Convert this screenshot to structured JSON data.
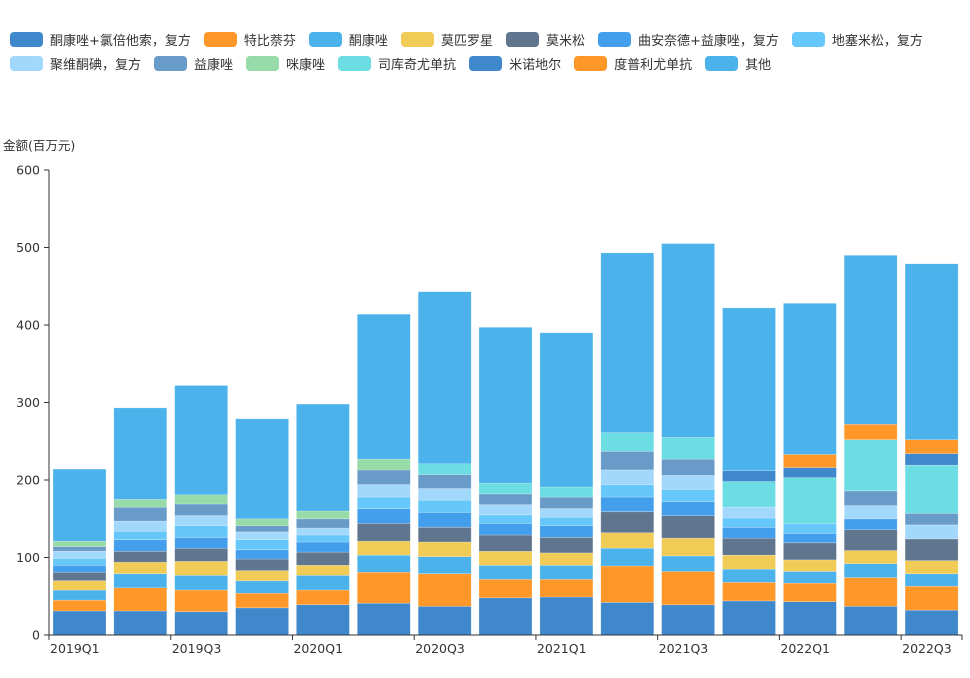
{
  "chart_data": {
    "type": "bar",
    "stacked": true,
    "title": "",
    "xlabel": "",
    "ylabel": "金额(百万元)",
    "ylim": [
      0,
      600
    ],
    "yticks": [
      0,
      100,
      200,
      300,
      400,
      500,
      600
    ],
    "grid": false,
    "legend_position": "top",
    "categories": [
      "2019Q1",
      "2019Q2",
      "2019Q3",
      "2019Q4",
      "2020Q1",
      "2020Q2",
      "2020Q3",
      "2020Q4",
      "2021Q1",
      "2021Q2",
      "2021Q3",
      "2021Q4",
      "2022Q1",
      "2022Q2",
      "2022Q3"
    ],
    "xtick_labels": [
      "2019Q1",
      "",
      "2019Q3",
      "",
      "2020Q1",
      "",
      "2020Q3",
      "",
      "2021Q1",
      "",
      "2021Q3",
      "",
      "2022Q1",
      "",
      "2022Q3"
    ],
    "series": [
      {
        "name": "酮康唑+氯倍他索，复方",
        "color": "#3f88cc",
        "values": [
          31,
          31,
          30,
          35,
          39,
          41,
          37,
          48,
          49,
          42,
          39,
          44,
          43,
          37,
          32
        ]
      },
      {
        "name": "特比萘芬",
        "color": "#ff9729",
        "values": [
          14,
          30,
          28,
          19,
          19,
          40,
          42,
          24,
          23,
          47,
          43,
          24,
          24,
          37,
          31
        ]
      },
      {
        "name": "酮康唑",
        "color": "#4bb2eb",
        "values": [
          13,
          18,
          19,
          16,
          19,
          22,
          22,
          18,
          18,
          23,
          20,
          17,
          15,
          18,
          16
        ]
      },
      {
        "name": "莫匹罗星",
        "color": "#f0cb55",
        "values": [
          12,
          15,
          18,
          13,
          13,
          18,
          19,
          18,
          16,
          20,
          23,
          18,
          15,
          17,
          17
        ]
      },
      {
        "name": "莫米松",
        "color": "#60768f",
        "values": [
          11,
          14,
          17,
          15,
          17,
          23,
          19,
          21,
          20,
          27,
          29,
          22,
          22,
          27,
          28
        ]
      },
      {
        "name": "曲安奈德+益康唑，复方",
        "color": "#439fec",
        "values": [
          9,
          15,
          14,
          12,
          13,
          19,
          19,
          15,
          15,
          19,
          18,
          14,
          12,
          14,
          0
        ]
      },
      {
        "name": "地塞米松，复方",
        "color": "#66c7fa",
        "values": [
          9,
          11,
          15,
          13,
          9,
          15,
          16,
          11,
          11,
          16,
          16,
          12,
          13,
          0,
          0
        ]
      },
      {
        "name": "聚维酮碘，复方",
        "color": "#a2d8fb",
        "values": [
          9,
          13,
          13,
          10,
          9,
          16,
          15,
          13,
          11,
          19,
          18,
          14,
          0,
          17,
          18
        ]
      },
      {
        "name": "益康唑",
        "color": "#699bc9",
        "values": [
          6,
          18,
          15,
          8,
          12,
          19,
          18,
          14,
          15,
          24,
          21,
          0,
          0,
          19,
          15
        ]
      },
      {
        "name": "咪康唑",
        "color": "#97dba8",
        "values": [
          7,
          10,
          12,
          9,
          10,
          14,
          0,
          0,
          0,
          0,
          0,
          0,
          0,
          0,
          0
        ]
      },
      {
        "name": "司库奇尤单抗",
        "color": "#6cdde3",
        "values": [
          0,
          0,
          0,
          0,
          0,
          0,
          14,
          14,
          13,
          24,
          28,
          33,
          59,
          66,
          62
        ]
      },
      {
        "name": "米诺地尔",
        "color": "#3f88cc",
        "values": [
          0,
          0,
          0,
          0,
          0,
          0,
          0,
          0,
          0,
          0,
          0,
          14,
          13,
          0,
          15
        ]
      },
      {
        "name": "度普利尤单抗",
        "color": "#ff9729",
        "values": [
          0,
          0,
          0,
          0,
          0,
          0,
          0,
          0,
          0,
          0,
          0,
          0,
          17,
          20,
          18
        ]
      },
      {
        "name": "其他",
        "color": "#4bb2eb",
        "values": [
          93,
          118,
          141,
          129,
          138,
          187,
          222,
          201,
          199,
          232,
          250,
          210,
          195,
          218,
          227
        ]
      }
    ]
  }
}
